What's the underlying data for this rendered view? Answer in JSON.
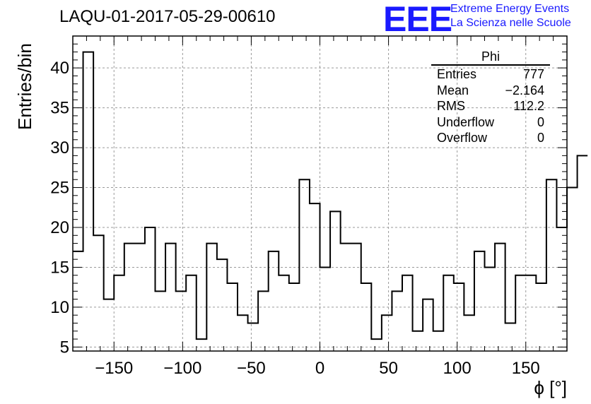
{
  "header": {
    "title": "LAQU-01-2017-05-29-00610",
    "logo_text": "EEE",
    "brand_line1": "Extreme Energy Events",
    "brand_line2": "La Scienza nelle Scuole"
  },
  "stats": {
    "title": "Phi",
    "rows": [
      {
        "label": "Entries",
        "value": "777"
      },
      {
        "label": "Mean",
        "value": "−2.164"
      },
      {
        "label": "RMS",
        "value": "112.2"
      },
      {
        "label": "Underflow",
        "value": "0"
      },
      {
        "label": "Overflow",
        "value": "0"
      }
    ]
  },
  "colors": {
    "line": "#000000",
    "grid": "#9a9a9a",
    "brand": "#1a1aff"
  },
  "chart_data": {
    "type": "histogram",
    "xlabel": "ϕ [°]",
    "ylabel": "Entries/bin",
    "xlim": [
      -180,
      180
    ],
    "ylim": [
      4.5,
      44
    ],
    "bin_width": 7.5,
    "x_ticks": [
      -150,
      -100,
      -50,
      0,
      50,
      100,
      150
    ],
    "x_tick_labels": [
      "−150",
      "−100",
      "−50",
      "0",
      "50",
      "100",
      "150"
    ],
    "y_ticks": [
      5,
      10,
      15,
      20,
      25,
      30,
      35,
      40
    ],
    "grid": true,
    "bin_edges_start": -180,
    "values": [
      17,
      42,
      19,
      11,
      14,
      18,
      18,
      20,
      12,
      18,
      12,
      14,
      6,
      18,
      16,
      13,
      9,
      8,
      12,
      17,
      14,
      13,
      26,
      23,
      15,
      22,
      18,
      18,
      13,
      6,
      9,
      12,
      14,
      7,
      11,
      7,
      14,
      13,
      9,
      17,
      15,
      18,
      8,
      14,
      14,
      13,
      26,
      20,
      25,
      29
    ]
  }
}
